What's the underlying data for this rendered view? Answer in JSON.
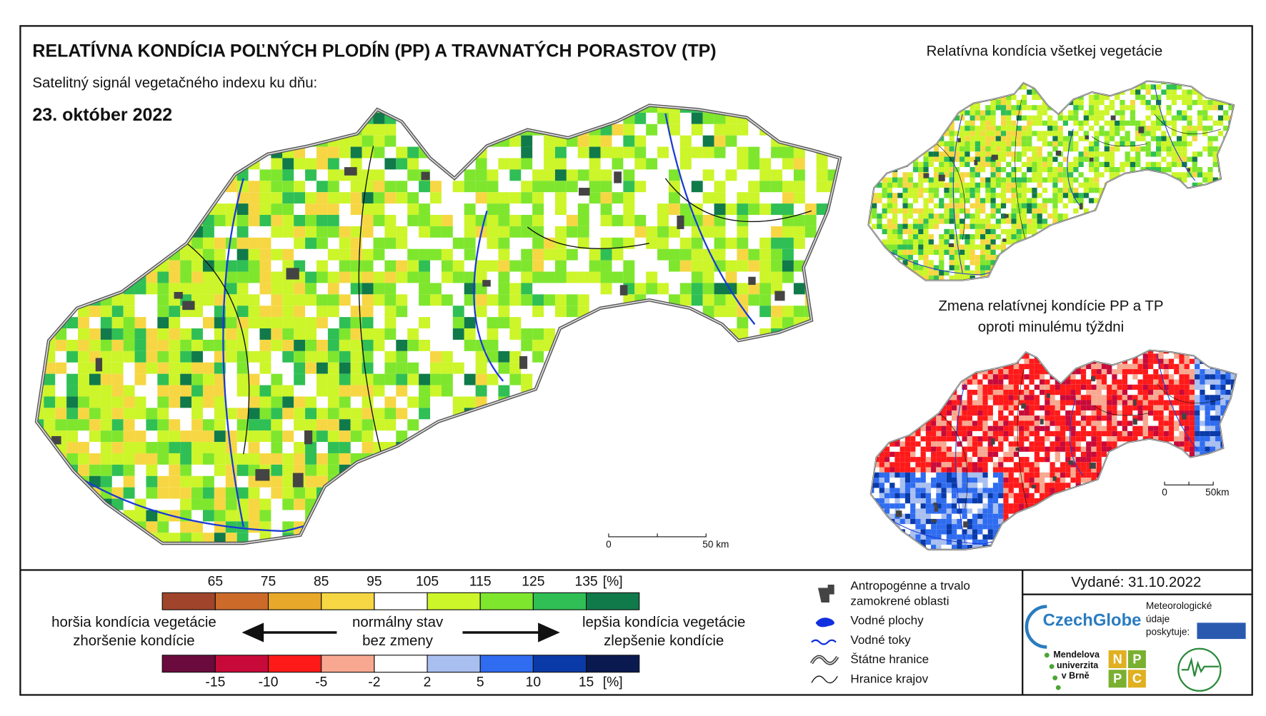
{
  "header": {
    "title": "RELATÍVNA KONDÍCIA POĽNÝCH PLODÍN (PP) A TRAVNATÝCH PORASTOV (TP)",
    "subtitle": "Satelitný signál vegetačného indexu ku dňu:",
    "date": "23. október 2022"
  },
  "main_map": {
    "scale_labels": [
      "0",
      "50 km"
    ]
  },
  "side_maps": [
    {
      "title": [
        "Relatívna kondícia všetkej vegetácie"
      ]
    },
    {
      "title": [
        "Zmena relatívnej kondície PP a TP",
        "oproti minulému týždni"
      ],
      "scale_labels": [
        "0",
        "50km"
      ]
    }
  ],
  "legend": {
    "condition_scale": {
      "ticks": [
        "65",
        "75",
        "85",
        "95",
        "105",
        "115",
        "125",
        "135"
      ],
      "unit": "[%]",
      "colors": [
        "#a0442c",
        "#cc6a2a",
        "#e8a82a",
        "#f6d743",
        "#ffffff",
        "#ccf52a",
        "#7fe62e",
        "#2fbf55",
        "#107a4a"
      ]
    },
    "change_scale": {
      "ticks": [
        "-15",
        "-10",
        "-5",
        "-2",
        "2",
        "5",
        "10",
        "15"
      ],
      "unit": "[%]",
      "colors": [
        "#6b0a3c",
        "#c80a3a",
        "#ff1a1a",
        "#f8a890",
        "#ffffff",
        "#a8bff0",
        "#2f6cf0",
        "#0a3aa8",
        "#0a1a50"
      ]
    },
    "left": [
      "horšia kondícia vegetácie",
      "zhoršenie kondície"
    ],
    "center": [
      "normálny stav",
      "bez zmeny"
    ],
    "right": [
      "lepšia kondícia vegetácie",
      "zlepšenie kondície"
    ]
  },
  "key": [
    [
      "Antropogénne a trvalo",
      "zamokrené oblasti"
    ],
    [
      "Vodné plochy"
    ],
    [
      "Vodné toky"
    ],
    [
      "Štátne hranice"
    ],
    [
      "Hranice krajov"
    ]
  ],
  "footer": {
    "issued": "Vydané: 31.10.2022",
    "provider": [
      "Meteorologické",
      "údaje",
      "poskytuje:"
    ],
    "logos": {
      "czechglobe": "CzechGlobe",
      "mendel": [
        "Mendelova",
        "univerzita",
        "v Brně"
      ],
      "nppc": [
        "N",
        "P",
        "P",
        "C"
      ]
    }
  }
}
